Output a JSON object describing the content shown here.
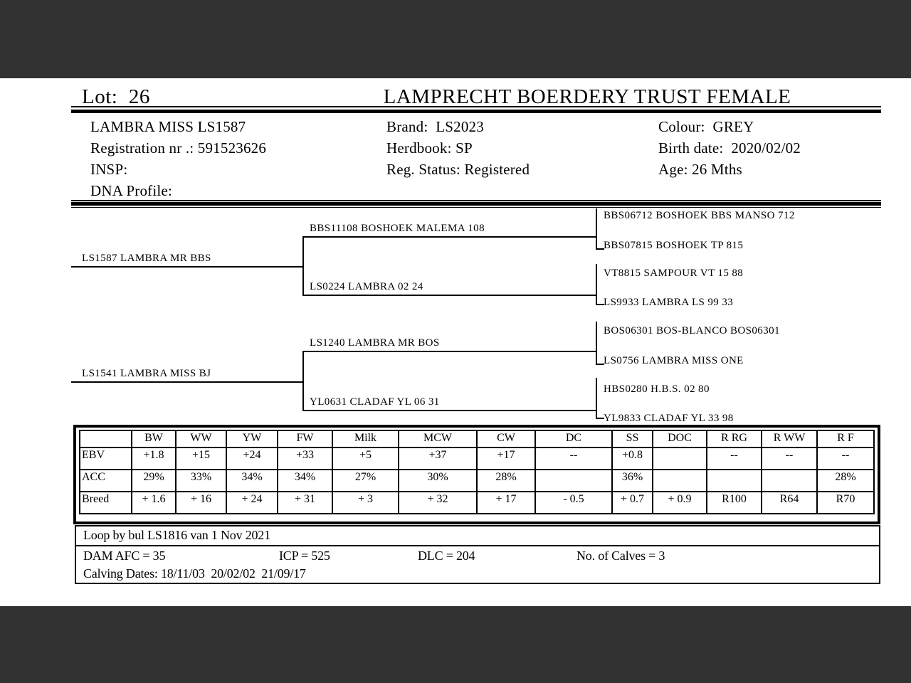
{
  "colors": {
    "frame": "#323232",
    "ink": "#000000",
    "paper": "#ffffff"
  },
  "header": {
    "lot_label": "Lot:",
    "lot_number": "26",
    "title": "LAMPRECHT BOERDERY TRUST FEMALE"
  },
  "details": {
    "name": "LAMBRA MISS LS1587",
    "registration": "Registration nr .: 591523626",
    "insp": "INSP:",
    "dna_profile": "DNA Profile:",
    "brand": "Brand:  LS2023",
    "herdbook": "Herdbook: SP",
    "reg_status": "Reg. Status: Registered",
    "colour": "Colour:  GREY",
    "birth_date": "Birth date:  2020/02/02",
    "age": "Age: 26 Mths"
  },
  "pedigree": {
    "gen1": [
      "LS1587 LAMBRA MR BBS",
      "LS1541 LAMBRA MISS BJ"
    ],
    "gen2": [
      "BBS11108 BOSHOEK MALEMA 108",
      "LS0224 LAMBRA 02 24",
      "LS1240 LAMBRA MR BOS",
      "YL0631 CLADAF YL 06 31"
    ],
    "gen3": [
      "BBS06712 BOSHOEK BBS MANSO 712",
      "BBS07815 BOSHOEK TP 815",
      "VT8815 SAMPOUR VT 15 88",
      "LS9933 LAMBRA LS 99 33",
      "BOS06301 BOS-BLANCO BOS06301",
      "LS0756 LAMBRA MISS ONE",
      "HBS0280 H.B.S. 02 80",
      "YL9833 CLADAF YL 33 98"
    ]
  },
  "ebv_table": {
    "columns": [
      "",
      "BW",
      "WW",
      "YW",
      "FW",
      "Milk",
      "MCW",
      "CW",
      "DC",
      "SS",
      "DOC",
      "R RG",
      "R WW",
      "R F"
    ],
    "rows": [
      {
        "label": "EBV",
        "values": [
          "+1.8",
          "+15",
          "+24",
          "+33",
          "+5",
          "+37",
          "+17",
          "--",
          "+0.8",
          "",
          "--",
          "--",
          "--"
        ]
      },
      {
        "label": "ACC",
        "values": [
          "29%",
          "33%",
          "34%",
          "34%",
          "27%",
          "30%",
          "28%",
          "",
          "36%",
          "",
          "",
          "",
          "28%"
        ]
      },
      {
        "label": "Breed",
        "values": [
          "+ 1.6",
          "+ 16",
          "+ 24",
          "+ 31",
          "+ 3",
          "+ 32",
          "+ 17",
          "- 0.5",
          "+ 0.7",
          "+ 0.9",
          "R100",
          "R64",
          "R70"
        ]
      }
    ]
  },
  "notes": {
    "loop_note": "Loop by bul LS1816 van 1 Nov 2021",
    "dam_afc": "DAM AFC = 35",
    "icp": "ICP = 525",
    "dlc": "DLC = 204",
    "calves": "No. of Calves = 3",
    "calving_dates": "Calving Dates: 18/11/03  20/02/02  21/09/17"
  }
}
